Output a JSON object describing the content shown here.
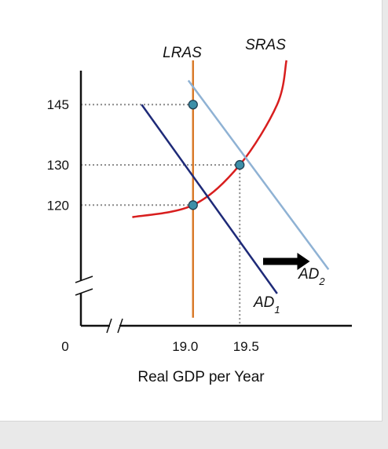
{
  "chart_data": {
    "type": "line",
    "xlabel": "Real GDP per Year",
    "ylabel": "",
    "origin_label": "0",
    "x_ticks": [
      {
        "value": 19.0,
        "label": "19.0"
      },
      {
        "value": 19.5,
        "label": "19.5"
      }
    ],
    "y_ticks": [
      {
        "value": 120,
        "label": "120"
      },
      {
        "value": 130,
        "label": "130"
      },
      {
        "value": 145,
        "label": "145"
      }
    ],
    "xlim": [
      17.8,
      20.7
    ],
    "ylim": [
      90,
      155
    ],
    "axis_breaks": {
      "x": true,
      "y": true
    },
    "series": [
      {
        "name": "LRAS",
        "kind": "vertical",
        "x": 19.0,
        "y_range": [
          92,
          156
        ],
        "color": "#d97a2a"
      },
      {
        "name": "SRAS",
        "kind": "curve",
        "points": [
          [
            18.35,
            117
          ],
          [
            19.0,
            120
          ],
          [
            19.5,
            130
          ],
          [
            19.9,
            145
          ],
          [
            20.0,
            156
          ]
        ],
        "color": "#d81e1e"
      },
      {
        "name": "AD",
        "subscript": "1",
        "kind": "line",
        "points": [
          [
            18.45,
            145
          ],
          [
            19.9,
            98
          ]
        ],
        "color": "#1e2a78"
      },
      {
        "name": "AD",
        "subscript": "2",
        "kind": "line",
        "points": [
          [
            18.95,
            151
          ],
          [
            20.45,
            104
          ]
        ],
        "color": "#8fb2d4"
      }
    ],
    "equilibrium_points": [
      {
        "x": 19.0,
        "y": 120
      },
      {
        "x": 19.5,
        "y": 130
      },
      {
        "x": 19.0,
        "y": 145
      }
    ],
    "shift_arrow": {
      "from": [
        19.75,
        106
      ],
      "to": [
        20.25,
        106
      ],
      "direction": "right"
    },
    "grid": false,
    "legend": "none"
  }
}
